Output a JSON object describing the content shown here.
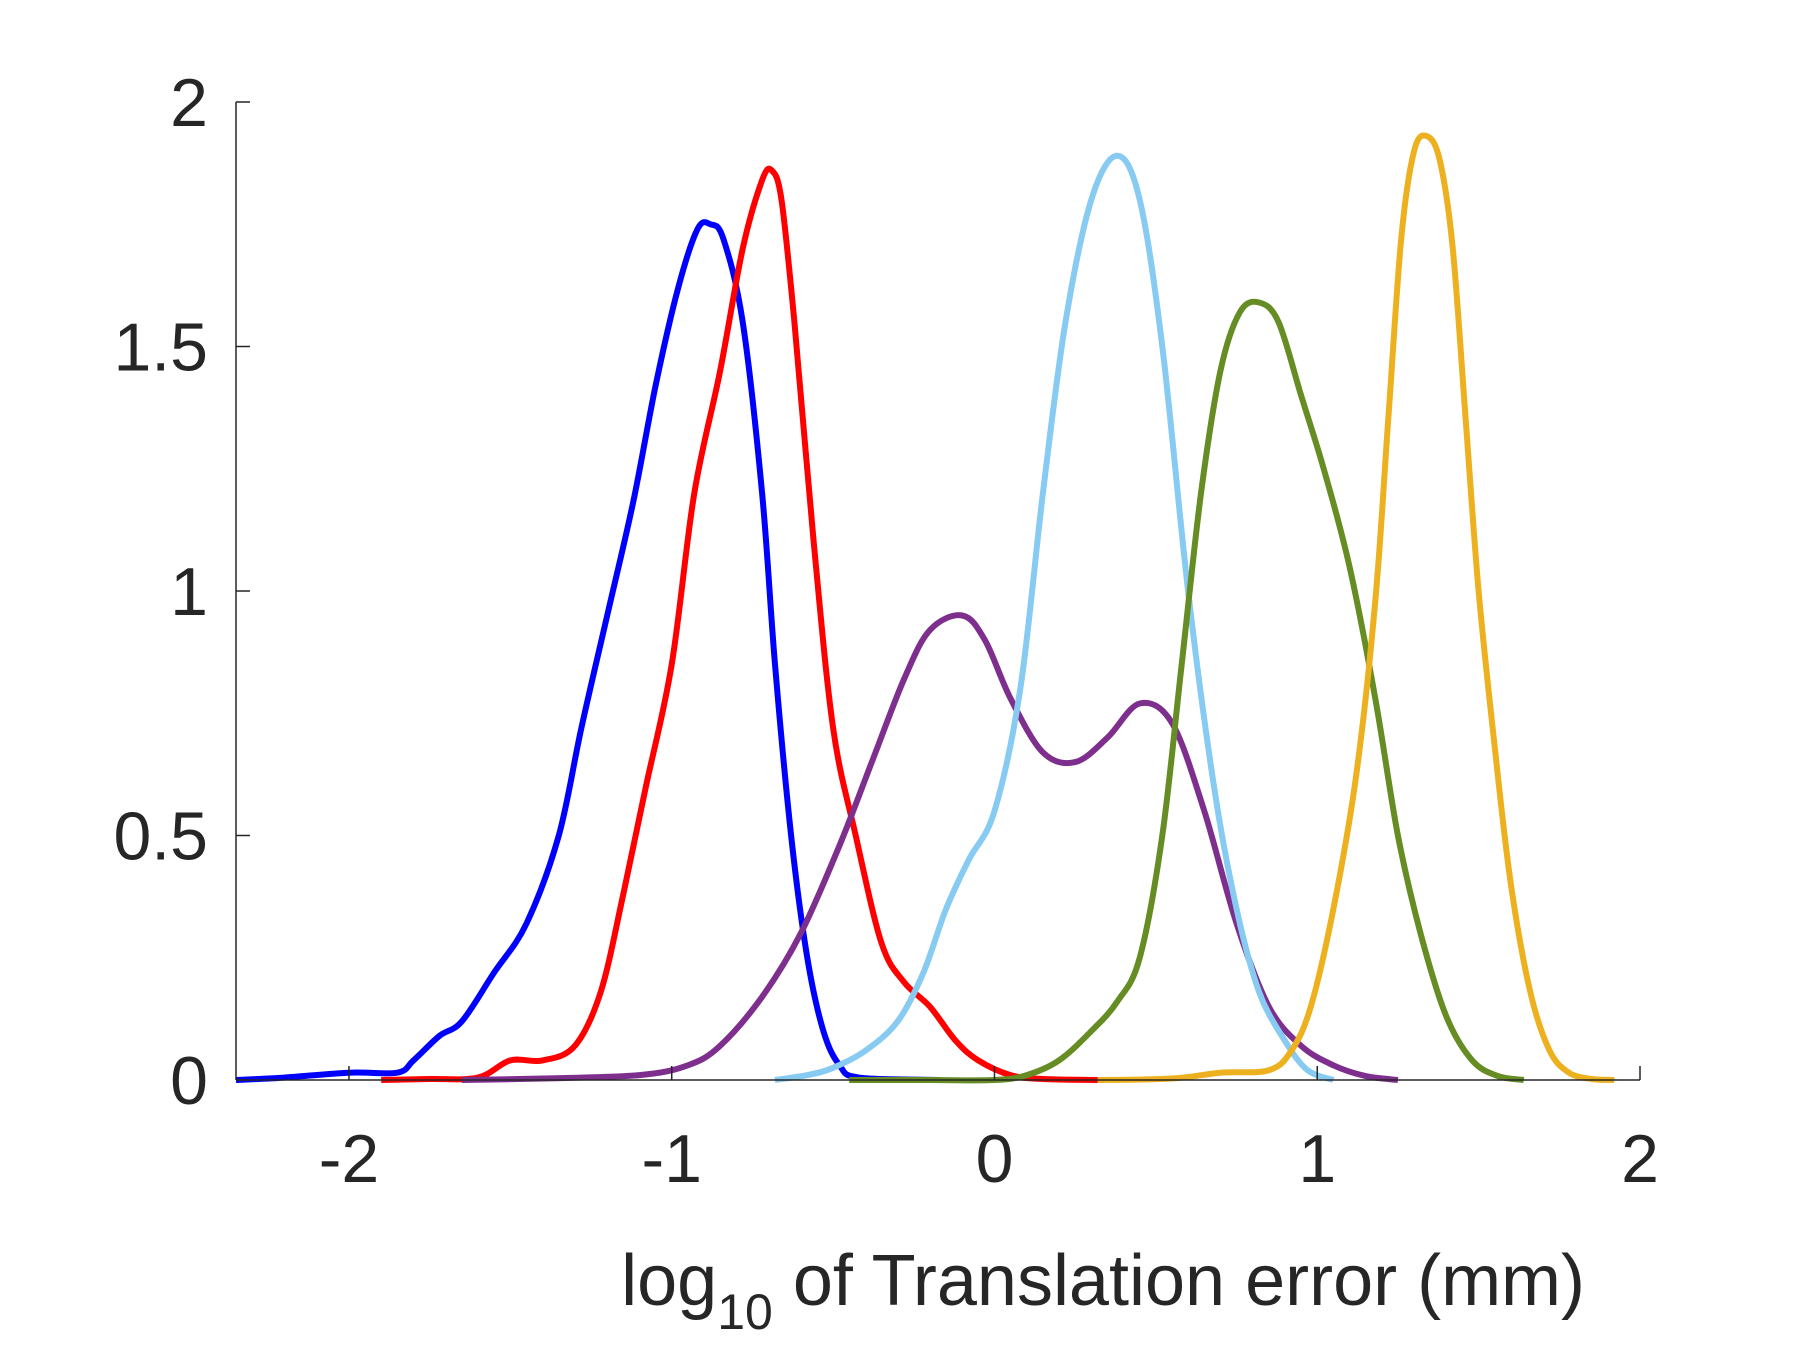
{
  "chart_data": {
    "type": "line",
    "title": "",
    "xlabel": {
      "main": "log",
      "sub": "10",
      "rest": " of Translation error (mm)"
    },
    "ylabel": "",
    "xlim": [
      -2.35,
      2.0
    ],
    "ylim": [
      0,
      2
    ],
    "xticks": [
      -2,
      -1,
      0,
      1,
      2
    ],
    "xtick_labels": [
      "-2",
      "-1",
      "0",
      "1",
      "2"
    ],
    "yticks": [
      0,
      0.5,
      1,
      1.5,
      2
    ],
    "ytick_labels": [
      "0",
      "0.5",
      "1",
      "1.5",
      "2"
    ],
    "grid": false,
    "legend": "none",
    "series": [
      {
        "color": "#0000ff",
        "points": [
          [
            -2.35,
            0.0
          ],
          [
            -2.2,
            0.005
          ],
          [
            -2.0,
            0.015
          ],
          [
            -1.85,
            0.015
          ],
          [
            -1.8,
            0.04
          ],
          [
            -1.72,
            0.09
          ],
          [
            -1.65,
            0.12
          ],
          [
            -1.55,
            0.22
          ],
          [
            -1.45,
            0.32
          ],
          [
            -1.35,
            0.5
          ],
          [
            -1.28,
            0.72
          ],
          [
            -1.2,
            0.95
          ],
          [
            -1.12,
            1.18
          ],
          [
            -1.05,
            1.42
          ],
          [
            -0.98,
            1.62
          ],
          [
            -0.92,
            1.74
          ],
          [
            -0.88,
            1.75
          ],
          [
            -0.84,
            1.72
          ],
          [
            -0.78,
            1.55
          ],
          [
            -0.72,
            1.2
          ],
          [
            -0.68,
            0.85
          ],
          [
            -0.63,
            0.5
          ],
          [
            -0.58,
            0.25
          ],
          [
            -0.53,
            0.1
          ],
          [
            -0.48,
            0.03
          ],
          [
            -0.42,
            0.005
          ],
          [
            -0.17,
            0.0
          ]
        ]
      },
      {
        "color": "#ff0000",
        "points": [
          [
            -1.9,
            0.0
          ],
          [
            -1.75,
            0.002
          ],
          [
            -1.6,
            0.005
          ],
          [
            -1.5,
            0.04
          ],
          [
            -1.4,
            0.04
          ],
          [
            -1.3,
            0.07
          ],
          [
            -1.22,
            0.18
          ],
          [
            -1.15,
            0.38
          ],
          [
            -1.08,
            0.6
          ],
          [
            -1.0,
            0.85
          ],
          [
            -0.93,
            1.2
          ],
          [
            -0.85,
            1.45
          ],
          [
            -0.78,
            1.7
          ],
          [
            -0.72,
            1.84
          ],
          [
            -0.69,
            1.86
          ],
          [
            -0.66,
            1.8
          ],
          [
            -0.62,
            1.55
          ],
          [
            -0.56,
            1.1
          ],
          [
            -0.5,
            0.72
          ],
          [
            -0.43,
            0.5
          ],
          [
            -0.35,
            0.28
          ],
          [
            -0.28,
            0.2
          ],
          [
            -0.2,
            0.15
          ],
          [
            -0.12,
            0.08
          ],
          [
            -0.05,
            0.04
          ],
          [
            0.05,
            0.01
          ],
          [
            0.15,
            0.002
          ],
          [
            0.32,
            0.0
          ]
        ]
      },
      {
        "color": "#7e2f8e",
        "points": [
          [
            -1.65,
            0.0
          ],
          [
            -1.4,
            0.003
          ],
          [
            -1.1,
            0.01
          ],
          [
            -0.95,
            0.03
          ],
          [
            -0.85,
            0.07
          ],
          [
            -0.72,
            0.17
          ],
          [
            -0.6,
            0.3
          ],
          [
            -0.48,
            0.48
          ],
          [
            -0.38,
            0.65
          ],
          [
            -0.28,
            0.82
          ],
          [
            -0.2,
            0.92
          ],
          [
            -0.1,
            0.95
          ],
          [
            -0.03,
            0.9
          ],
          [
            0.05,
            0.78
          ],
          [
            0.15,
            0.67
          ],
          [
            0.25,
            0.65
          ],
          [
            0.35,
            0.7
          ],
          [
            0.45,
            0.77
          ],
          [
            0.55,
            0.73
          ],
          [
            0.65,
            0.55
          ],
          [
            0.75,
            0.32
          ],
          [
            0.85,
            0.15
          ],
          [
            0.95,
            0.07
          ],
          [
            1.05,
            0.03
          ],
          [
            1.15,
            0.008
          ],
          [
            1.25,
            0.0
          ]
        ]
      },
      {
        "color": "#87cbf2",
        "points": [
          [
            -0.68,
            0.0
          ],
          [
            -0.58,
            0.01
          ],
          [
            -0.5,
            0.025
          ],
          [
            -0.4,
            0.06
          ],
          [
            -0.3,
            0.12
          ],
          [
            -0.22,
            0.22
          ],
          [
            -0.15,
            0.35
          ],
          [
            -0.08,
            0.45
          ],
          [
            0.0,
            0.55
          ],
          [
            0.08,
            0.8
          ],
          [
            0.15,
            1.2
          ],
          [
            0.22,
            1.55
          ],
          [
            0.3,
            1.8
          ],
          [
            0.38,
            1.89
          ],
          [
            0.45,
            1.8
          ],
          [
            0.52,
            1.5
          ],
          [
            0.6,
            1.0
          ],
          [
            0.68,
            0.6
          ],
          [
            0.75,
            0.35
          ],
          [
            0.82,
            0.18
          ],
          [
            0.9,
            0.08
          ],
          [
            0.97,
            0.02
          ],
          [
            1.05,
            0.0
          ]
        ]
      },
      {
        "color": "#668c24",
        "points": [
          [
            -0.45,
            0.0
          ],
          [
            -0.2,
            0.0
          ],
          [
            0.0,
            0.0
          ],
          [
            0.1,
            0.01
          ],
          [
            0.2,
            0.04
          ],
          [
            0.3,
            0.1
          ],
          [
            0.38,
            0.16
          ],
          [
            0.45,
            0.25
          ],
          [
            0.52,
            0.5
          ],
          [
            0.58,
            0.85
          ],
          [
            0.64,
            1.2
          ],
          [
            0.7,
            1.45
          ],
          [
            0.76,
            1.57
          ],
          [
            0.82,
            1.59
          ],
          [
            0.88,
            1.55
          ],
          [
            0.95,
            1.4
          ],
          [
            1.02,
            1.25
          ],
          [
            1.1,
            1.05
          ],
          [
            1.18,
            0.78
          ],
          [
            1.25,
            0.5
          ],
          [
            1.32,
            0.3
          ],
          [
            1.4,
            0.13
          ],
          [
            1.48,
            0.04
          ],
          [
            1.56,
            0.008
          ],
          [
            1.64,
            0.0
          ]
        ]
      },
      {
        "color": "#edb120",
        "points": [
          [
            0.32,
            0.0
          ],
          [
            0.55,
            0.003
          ],
          [
            0.7,
            0.015
          ],
          [
            0.85,
            0.02
          ],
          [
            0.92,
            0.06
          ],
          [
            0.98,
            0.15
          ],
          [
            1.05,
            0.35
          ],
          [
            1.12,
            0.62
          ],
          [
            1.18,
            0.98
          ],
          [
            1.22,
            1.35
          ],
          [
            1.26,
            1.72
          ],
          [
            1.3,
            1.9
          ],
          [
            1.34,
            1.93
          ],
          [
            1.38,
            1.88
          ],
          [
            1.42,
            1.7
          ],
          [
            1.46,
            1.35
          ],
          [
            1.5,
            1.0
          ],
          [
            1.55,
            0.68
          ],
          [
            1.6,
            0.4
          ],
          [
            1.66,
            0.18
          ],
          [
            1.72,
            0.06
          ],
          [
            1.78,
            0.015
          ],
          [
            1.85,
            0.002
          ],
          [
            1.92,
            0.0
          ]
        ]
      }
    ]
  }
}
